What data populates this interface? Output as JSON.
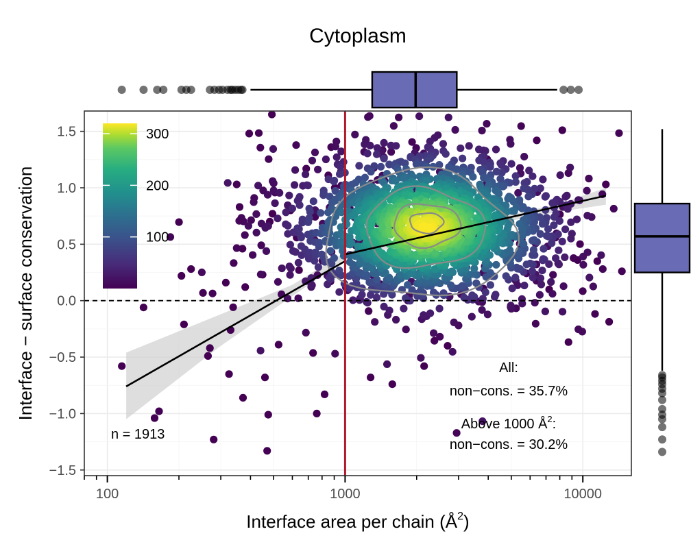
{
  "chart_data": {
    "type": "scatter",
    "title": "Cytoplasm",
    "xlabel": "Interface area per chain (Å",
    "xlabel_sup": "2",
    "xlabel_close": ")",
    "ylabel": "Interface − surface conservation",
    "x_scale": "log10",
    "xlim": [
      80,
      16000
    ],
    "ylim": [
      -1.55,
      1.68
    ],
    "x_ticks": [
      {
        "value": 100,
        "label": "100"
      },
      {
        "value": 1000,
        "label": "1000"
      },
      {
        "value": 10000,
        "label": "10000"
      }
    ],
    "y_ticks": [
      {
        "value": 1.5,
        "label": "1.5"
      },
      {
        "value": 1.0,
        "label": "1.0"
      },
      {
        "value": 0.5,
        "label": "0.5"
      },
      {
        "value": 0.0,
        "label": "0.0"
      },
      {
        "value": -0.5,
        "label": "−0.5"
      },
      {
        "value": -1.0,
        "label": "−1.0"
      },
      {
        "value": -1.5,
        "label": "−1.5"
      }
    ],
    "reference_lines": {
      "vertical_x": 1000,
      "vertical_color": "#b2182b",
      "horizontal_y": 0
    },
    "density_colorbar": {
      "min": 0,
      "max": 320,
      "ticks": [
        {
          "value": 300,
          "label": "300"
        },
        {
          "value": 200,
          "label": "200"
        },
        {
          "value": 100,
          "label": "100"
        }
      ],
      "palette": "viridis"
    },
    "annotations": {
      "n_label": "n = 1913",
      "all_title": "All:",
      "all_value": "non−cons. = 35.7%",
      "above_title_pre": "Above 1000 Å",
      "above_title_sup": "2",
      "above_title_post": ":",
      "above_value": "non−cons. = 30.2%"
    },
    "fit_line": {
      "segments": [
        {
          "x": [
            120,
            1000
          ],
          "y": [
            -0.76,
            0.35
          ]
        },
        {
          "x": [
            1000,
            12500
          ],
          "y": [
            0.41,
            0.93
          ]
        }
      ],
      "ci_band": [
        {
          "x": 120,
          "lo": -1.05,
          "hi": -0.46
        },
        {
          "x": 300,
          "lo": -0.4,
          "hi": -0.12
        },
        {
          "x": 600,
          "lo": 0.04,
          "hi": 0.14
        },
        {
          "x": 1000,
          "lo": 0.36,
          "hi": 0.43
        },
        {
          "x": 3000,
          "lo": 0.62,
          "hi": 0.66
        },
        {
          "x": 8000,
          "lo": 0.79,
          "hi": 0.86
        },
        {
          "x": 12500,
          "lo": 0.85,
          "hi": 1.0
        }
      ]
    },
    "scatter_cluster": {
      "x_center": 2200,
      "y_center": 0.65,
      "x_spread_log": 0.27,
      "y_spread": 0.33,
      "count": 1913
    },
    "sparse_points": [
      {
        "x": 115,
        "y": -0.58
      },
      {
        "x": 142,
        "y": -0.06
      },
      {
        "x": 158,
        "y": -1.04
      },
      {
        "x": 165,
        "y": -0.98
      },
      {
        "x": 205,
        "y": 0.22
      },
      {
        "x": 210,
        "y": -0.21
      },
      {
        "x": 225,
        "y": 0.28
      },
      {
        "x": 265,
        "y": -0.49
      },
      {
        "x": 270,
        "y": -0.42
      },
      {
        "x": 280,
        "y": -1.23
      },
      {
        "x": 315,
        "y": 0.16
      },
      {
        "x": 325,
        "y": -0.65
      },
      {
        "x": 330,
        "y": -0.26
      },
      {
        "x": 350,
        "y": 1.03
      },
      {
        "x": 360,
        "y": 0.83
      },
      {
        "x": 370,
        "y": 0.46
      },
      {
        "x": 372,
        "y": -0.86
      },
      {
        "x": 380,
        "y": 0.12
      },
      {
        "x": 395,
        "y": 1.48
      },
      {
        "x": 450,
        "y": 0.23
      },
      {
        "x": 460,
        "y": -0.68
      },
      {
        "x": 470,
        "y": -1.33
      },
      {
        "x": 475,
        "y": -1.01
      },
      {
        "x": 482,
        "y": 0.7
      },
      {
        "x": 495,
        "y": 0.77
      },
      {
        "x": 525,
        "y": -0.39
      },
      {
        "x": 590,
        "y": 0.8
      },
      {
        "x": 640,
        "y": 0.27
      },
      {
        "x": 700,
        "y": 0.7
      },
      {
        "x": 760,
        "y": -1.0
      },
      {
        "x": 820,
        "y": -0.83
      },
      {
        "x": 850,
        "y": 1.11
      },
      {
        "x": 905,
        "y": 1.0
      },
      {
        "x": 11500,
        "y": 0.35
      },
      {
        "x": 12500,
        "y": 1.03
      },
      {
        "x": 9500,
        "y": 0.36
      },
      {
        "x": 8200,
        "y": 1.51
      },
      {
        "x": 6400,
        "y": 1.42
      },
      {
        "x": 1280,
        "y": -0.68
      },
      {
        "x": 1580,
        "y": -0.74
      },
      {
        "x": 2150,
        "y": -0.58
      },
      {
        "x": 2700,
        "y": -0.4
      }
    ],
    "contours": [
      {
        "cx": 2200,
        "cy": 0.69,
        "rx_log": 0.07,
        "ry": 0.09,
        "level": 300
      },
      {
        "cx": 2200,
        "cy": 0.67,
        "rx_log": 0.14,
        "ry": 0.19,
        "level": 200
      },
      {
        "cx": 2150,
        "cy": 0.64,
        "rx_log": 0.25,
        "ry": 0.35,
        "level": 100
      },
      {
        "cx": 2050,
        "cy": 0.58,
        "rx_log": 0.4,
        "ry": 0.56,
        "level": 40
      }
    ],
    "x_boxplot": {
      "min": 400,
      "q1": 1300,
      "median": 1980,
      "q3": 2950,
      "max": 7800,
      "outliers": [
        115,
        142,
        162,
        172,
        205,
        215,
        225,
        270,
        282,
        295,
        305,
        320,
        330,
        335,
        345,
        355,
        365,
        370,
        8300,
        8900,
        9600
      ]
    },
    "y_boxplot": {
      "min": -0.62,
      "q1": 0.25,
      "median": 0.57,
      "q3": 0.86,
      "max": 1.52,
      "outliers": [
        -0.66,
        -0.68,
        -0.71,
        -0.74,
        -0.78,
        -0.82,
        -0.88,
        -0.96,
        -1.01,
        -1.05,
        -1.12,
        -1.23,
        -1.34
      ]
    }
  }
}
